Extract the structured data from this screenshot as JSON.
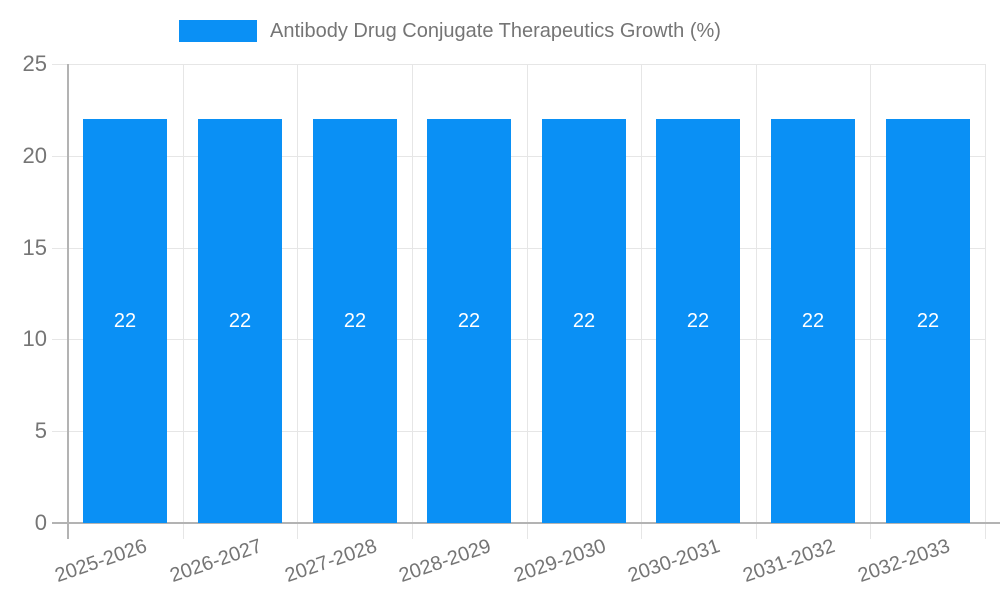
{
  "legend": {
    "label": "Antibody Drug Conjugate Therapeutics Growth (%)"
  },
  "colors": {
    "bar": "#0a90f5",
    "grid": "#e6e6e6",
    "axis": "#b3b3b3",
    "tick_text": "#757575",
    "value_text": "#ffffff",
    "background": "#ffffff"
  },
  "chart_data": {
    "type": "bar",
    "title": "Antibody Drug Conjugate Therapeutics Growth (%)",
    "categories": [
      "2025-2026",
      "2026-2027",
      "2027-2028",
      "2028-2029",
      "2029-2030",
      "2030-2031",
      "2031-2032",
      "2032-2033"
    ],
    "values": [
      22,
      22,
      22,
      22,
      22,
      22,
      22,
      22
    ],
    "value_labels": [
      "22",
      "22",
      "22",
      "22",
      "22",
      "22",
      "22",
      "22"
    ],
    "xlabel": "",
    "ylabel": "",
    "ylim": [
      0,
      25
    ],
    "yticks": [
      0,
      5,
      10,
      15,
      20,
      25
    ],
    "ytick_labels": [
      "0",
      "5",
      "10",
      "15",
      "20",
      "25"
    ],
    "grid": true,
    "legend_position": "top",
    "x_label_rotation_deg": -19
  }
}
